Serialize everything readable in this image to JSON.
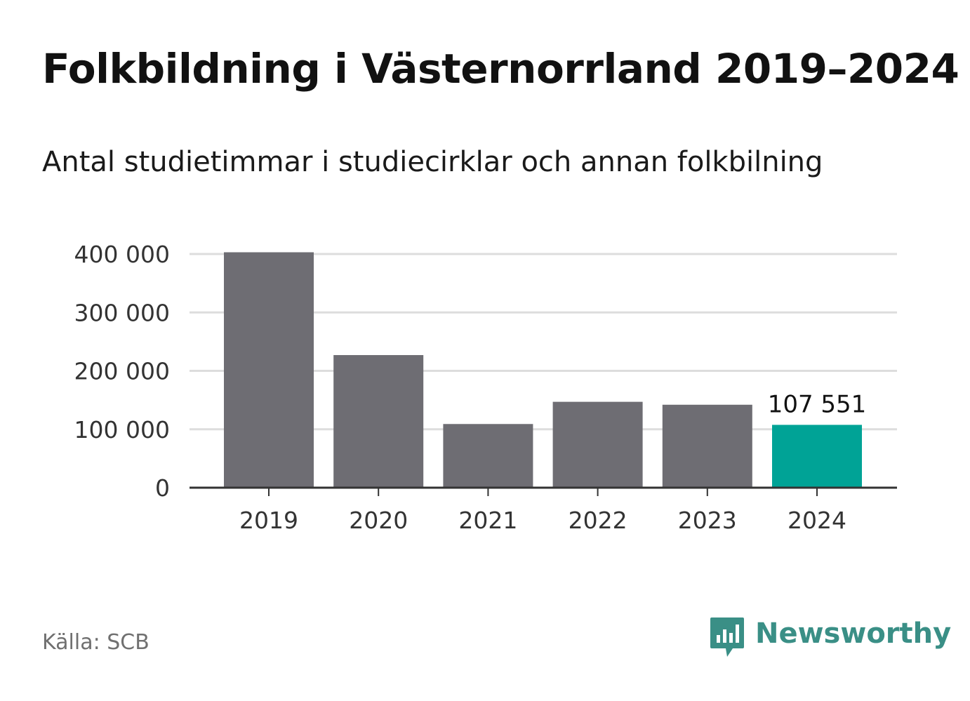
{
  "header": {
    "title": "Folkbildning i Västernorrland 2019–2024",
    "subtitle": "Antal studietimmar i studiecirklar och annan folkbilning"
  },
  "footer": {
    "source": "Källa: SCB",
    "brand": "Newsworthy",
    "brand_icon": "bar-chart-speech-bubble-icon"
  },
  "colors": {
    "bar": "#6e6d73",
    "highlight": "#00a396",
    "grid": "#dddddd",
    "axis": "#333333",
    "brand": "#3a8f86"
  },
  "chart_data": {
    "type": "bar",
    "categories": [
      "2019",
      "2020",
      "2021",
      "2022",
      "2023",
      "2024"
    ],
    "values": [
      403000,
      227000,
      109000,
      147000,
      142000,
      107551
    ],
    "highlight_index": 5,
    "data_labels": [
      {
        "index": 5,
        "text": "107 551"
      }
    ],
    "yticks": [
      0,
      100000,
      200000,
      300000,
      400000
    ],
    "ytick_labels": [
      "0",
      "100 000",
      "200 000",
      "300 000",
      "400 000"
    ],
    "ylim": [
      0,
      400000
    ],
    "grid": true
  }
}
